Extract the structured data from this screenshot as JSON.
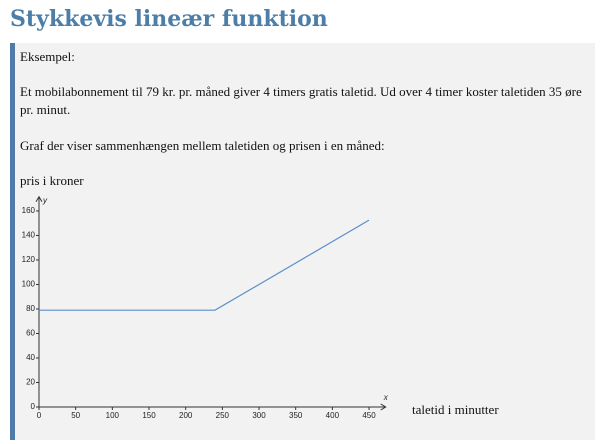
{
  "header": {
    "title": "Stykkevis lineær funktion"
  },
  "example": {
    "label": "Eksempel:",
    "text": "Et mobilabonnement til 79 kr. pr. måned giver 4 timers gratis taletid. Ud over 4 timer koster taletiden 35 øre pr. minut.",
    "graph_caption": "Graf der viser sammenhængen mellem taletiden og prisen i en måned:"
  },
  "chart_data": {
    "type": "line",
    "y_label": "pris i kroner",
    "x_label": "taletid i minutter",
    "x_axis_letter": "x",
    "y_axis_letter": "y",
    "x": [
      0,
      240,
      450
    ],
    "values": [
      79,
      79,
      152.5
    ],
    "color": "#5b8fc7",
    "xlim": [
      0,
      470
    ],
    "ylim": [
      0,
      170
    ],
    "xticks": [
      0,
      50,
      100,
      150,
      200,
      250,
      300,
      350,
      400,
      450
    ],
    "yticks": [
      0,
      20,
      40,
      60,
      80,
      100,
      120,
      140,
      160
    ]
  }
}
